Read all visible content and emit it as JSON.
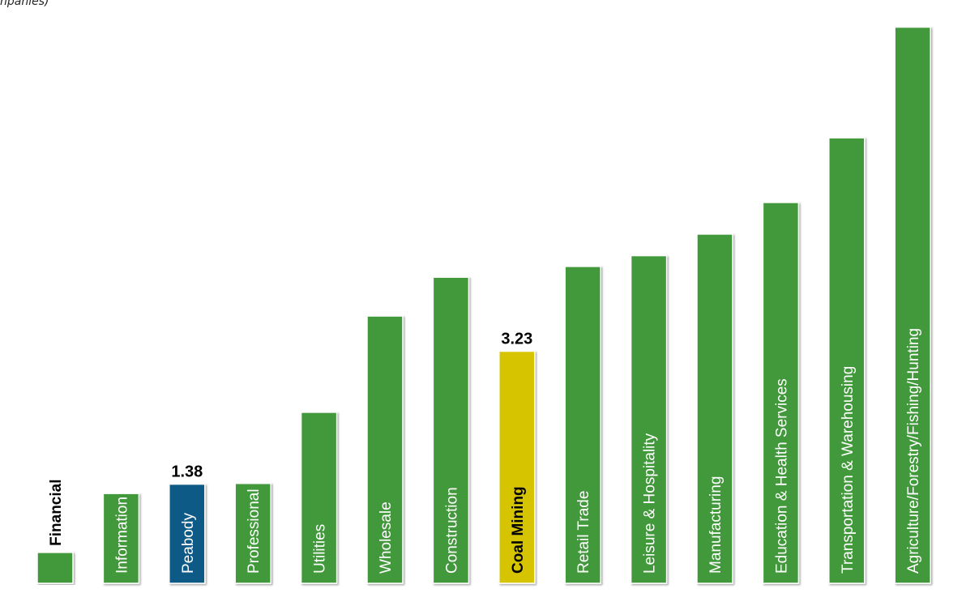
{
  "top_note": "npanies)",
  "chart_data": {
    "type": "bar",
    "categories": [
      "Financial",
      "Information",
      "Peabody",
      "Professional",
      "Utilities",
      "Wholesale",
      "Construction",
      "Coal Mining",
      "Retail Trade",
      "Leisure & Hospitality",
      "Manufacturing",
      "Education & Health Services",
      "Transportation &  Warehousing",
      "Agriculture/Forestry/Fishing/Hunting"
    ],
    "values": [
      0.43,
      1.25,
      1.38,
      1.39,
      2.38,
      3.72,
      4.26,
      3.23,
      4.41,
      4.56,
      4.86,
      5.3,
      6.2,
      7.74
    ],
    "data_labels": [
      {
        "index": 2,
        "text": "1.38"
      },
      {
        "index": 7,
        "text": "3.23"
      }
    ],
    "colors": {
      "default": "#43993b",
      "highlight_peabody": "#0f5a86",
      "highlight_coal": "#d7c400"
    },
    "bar_colors": [
      "default",
      "default",
      "highlight_peabody",
      "default",
      "default",
      "default",
      "default",
      "highlight_coal",
      "default",
      "default",
      "default",
      "default",
      "default",
      "default"
    ],
    "label_colors": {
      "default": "#ffffff",
      "outside": "#000000",
      "on_highlight_coal": "#000000"
    },
    "ylim": [
      0,
      8
    ],
    "title": "",
    "xlabel": "",
    "ylabel": "",
    "grid": false,
    "legend": "none"
  }
}
